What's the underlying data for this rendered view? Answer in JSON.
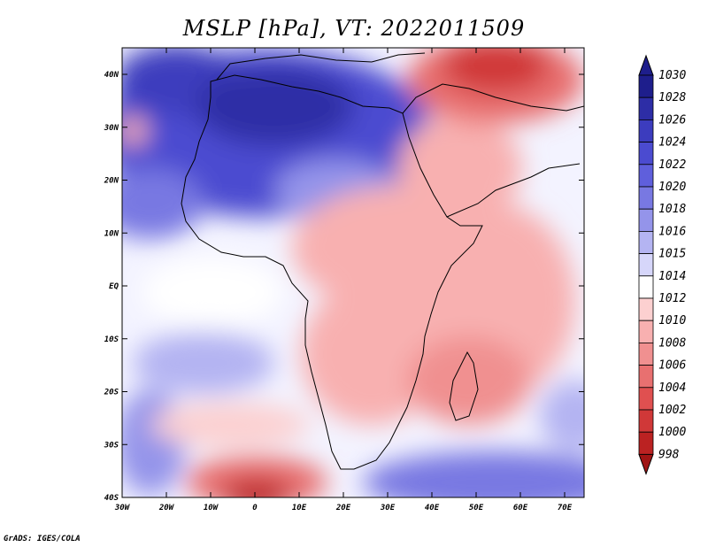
{
  "title": "MSLP [hPa], VT: 2022011509",
  "credit": "GrADS: IGES/COLA",
  "map": {
    "lon_labels": [
      "30W",
      "20W",
      "10W",
      "0",
      "10E",
      "20E",
      "30E",
      "40E",
      "50E",
      "60E",
      "70E"
    ],
    "lat_labels": [
      "40N",
      "30N",
      "20N",
      "10N",
      "EQ",
      "10S",
      "20S",
      "30S",
      "40S"
    ]
  },
  "colorbar": {
    "levels": [
      "1030",
      "1028",
      "1026",
      "1024",
      "1022",
      "1020",
      "1018",
      "1016",
      "1015",
      "1014",
      "1012",
      "1010",
      "1008",
      "1006",
      "1004",
      "1002",
      "1000",
      "998"
    ],
    "colors": [
      "#1e1e8c",
      "#2d2da6",
      "#3c3cbe",
      "#4b4bd0",
      "#5f5fdc",
      "#7878e2",
      "#9494ea",
      "#b4b4f2",
      "#d6d6fa",
      "#ffffff",
      "#fcd0d0",
      "#f8b0b0",
      "#f09090",
      "#e87070",
      "#e05050",
      "#d03838",
      "#bb2222",
      "#a01414"
    ]
  }
}
